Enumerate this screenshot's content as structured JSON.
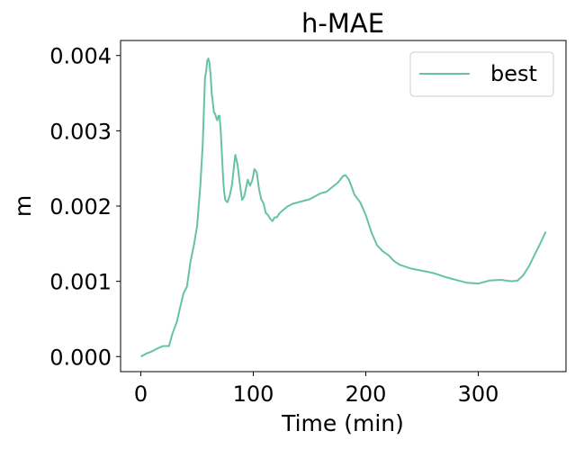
{
  "chart_data": {
    "type": "line",
    "title": "h-MAE",
    "xlabel": "Time (min)",
    "ylabel": "m",
    "xlim": [
      -18,
      378
    ],
    "ylim": [
      -0.0002,
      0.0042
    ],
    "x_ticks": [
      0,
      100,
      200,
      300
    ],
    "x_tick_labels": [
      "0",
      "100",
      "200",
      "300"
    ],
    "y_ticks": [
      0.0,
      0.001,
      0.002,
      0.003,
      0.004
    ],
    "y_tick_labels": [
      "0.000",
      "0.001",
      "0.002",
      "0.003",
      "0.004"
    ],
    "grid": false,
    "legend_position": "top-right",
    "series": [
      {
        "name": "best",
        "color": "#66c2a5",
        "x": [
          0,
          5,
          10,
          15,
          20,
          25,
          28,
          32,
          35,
          38,
          41,
          44,
          47,
          50,
          53,
          55,
          57,
          58,
          59,
          60,
          61,
          62,
          63,
          65,
          66,
          67,
          68,
          69,
          70,
          71,
          72,
          73,
          74,
          75,
          77,
          79,
          81,
          83,
          84,
          86,
          88,
          90,
          92,
          95,
          97,
          99,
          101,
          103,
          105,
          107,
          109,
          111,
          113,
          115,
          117,
          119,
          121,
          123,
          125,
          130,
          135,
          140,
          145,
          150,
          155,
          160,
          165,
          170,
          175,
          180,
          182,
          185,
          190,
          195,
          200,
          205,
          210,
          215,
          220,
          225,
          230,
          240,
          250,
          260,
          270,
          280,
          290,
          300,
          310,
          320,
          330,
          335,
          340,
          345,
          350,
          355,
          360
        ],
        "y": [
          0.0,
          4e-05,
          7e-05,
          0.00011,
          0.00014,
          0.00014,
          0.0003,
          0.00046,
          0.00066,
          0.00084,
          0.00093,
          0.00125,
          0.00147,
          0.00173,
          0.0023,
          0.00282,
          0.0037,
          0.00378,
          0.00393,
          0.00396,
          0.0039,
          0.00375,
          0.0035,
          0.00324,
          0.00323,
          0.00317,
          0.00314,
          0.0032,
          0.0032,
          0.003,
          0.00272,
          0.0024,
          0.0022,
          0.00208,
          0.00205,
          0.00214,
          0.00228,
          0.00256,
          0.00268,
          0.00255,
          0.0023,
          0.00208,
          0.00213,
          0.00235,
          0.00227,
          0.00234,
          0.00249,
          0.00245,
          0.00223,
          0.00209,
          0.00204,
          0.00191,
          0.00188,
          0.00183,
          0.0018,
          0.00185,
          0.00185,
          0.0019,
          0.00193,
          0.00199,
          0.00203,
          0.00205,
          0.00207,
          0.00209,
          0.00213,
          0.00217,
          0.00219,
          0.00225,
          0.00231,
          0.0024,
          0.00241,
          0.00235,
          0.00215,
          0.00205,
          0.00188,
          0.00165,
          0.00148,
          0.0014,
          0.00135,
          0.00127,
          0.00122,
          0.00117,
          0.00114,
          0.00111,
          0.00106,
          0.00102,
          0.00098,
          0.00097,
          0.00101,
          0.00102,
          0.001,
          0.00101,
          0.00108,
          0.0012,
          0.00135,
          0.0015,
          0.00166
        ]
      }
    ]
  }
}
